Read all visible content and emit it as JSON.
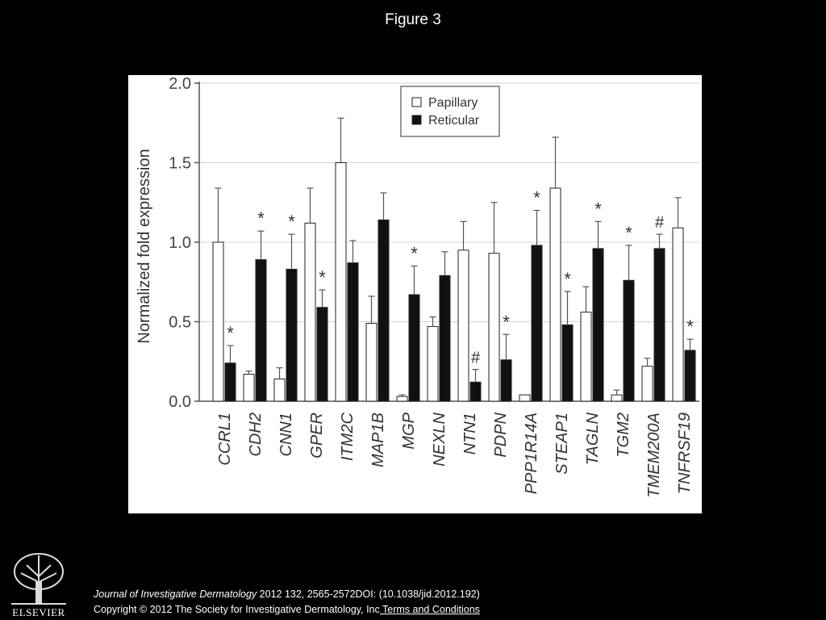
{
  "figure_title": "Figure 3",
  "footer": {
    "journal": "Journal of Investigative Dermatology",
    "citation": " 2012 132, 2565-2572DOI: (10.1038/jid.2012.192)",
    "copyright": "Copyright © 2012 The Society for Investigative Dermatology, Inc",
    "terms_link": " Terms and Conditions"
  },
  "logo": {
    "text": "ELSEVIER",
    "icon": "tree-icon"
  },
  "chart_data": {
    "type": "bar",
    "title": "",
    "xlabel": "",
    "ylabel": "Normalized fold expression",
    "ylim": [
      0,
      2.0
    ],
    "yticks": [
      "0.0",
      "0.5",
      "1.0",
      "1.5",
      "2.0"
    ],
    "grid": true,
    "legend_position": "top-right",
    "categories": [
      "CCRL1",
      "CDH2",
      "CNN1",
      "GPER",
      "ITM2C",
      "MAP1B",
      "MGP",
      "NEXLN",
      "NTN1",
      "PDPN",
      "PPP1R14A",
      "STEAP1",
      "TAGLN",
      "TGM2",
      "TMEM200A",
      "TNFRSF19"
    ],
    "series": [
      {
        "name": "Papillary",
        "fill": "#ffffff",
        "values": [
          1.0,
          0.17,
          0.14,
          1.12,
          1.5,
          0.49,
          0.03,
          0.47,
          0.95,
          0.93,
          0.04,
          1.34,
          0.56,
          0.04,
          0.22,
          1.09
        ],
        "errors": [
          0.34,
          0.02,
          0.07,
          0.22,
          0.28,
          0.17,
          0.01,
          0.06,
          0.18,
          0.32,
          0.0,
          0.32,
          0.16,
          0.03,
          0.05,
          0.19
        ],
        "annotations": [
          "",
          "",
          "",
          "",
          "",
          "",
          "",
          "",
          "",
          "",
          "",
          "",
          "",
          "",
          "",
          ""
        ]
      },
      {
        "name": "Reticular",
        "fill": "#111111",
        "values": [
          0.24,
          0.89,
          0.83,
          0.59,
          0.87,
          1.14,
          0.67,
          0.79,
          0.12,
          0.26,
          0.98,
          0.48,
          0.96,
          0.76,
          0.96,
          0.32
        ],
        "errors": [
          0.11,
          0.18,
          0.22,
          0.11,
          0.14,
          0.17,
          0.18,
          0.15,
          0.08,
          0.16,
          0.22,
          0.21,
          0.17,
          0.22,
          0.09,
          0.07
        ],
        "annotations": [
          "*",
          "*",
          "*",
          "*",
          "",
          "",
          "*",
          "",
          "#",
          "*",
          "*",
          "*",
          "*",
          "*",
          "#",
          "*"
        ]
      }
    ]
  }
}
